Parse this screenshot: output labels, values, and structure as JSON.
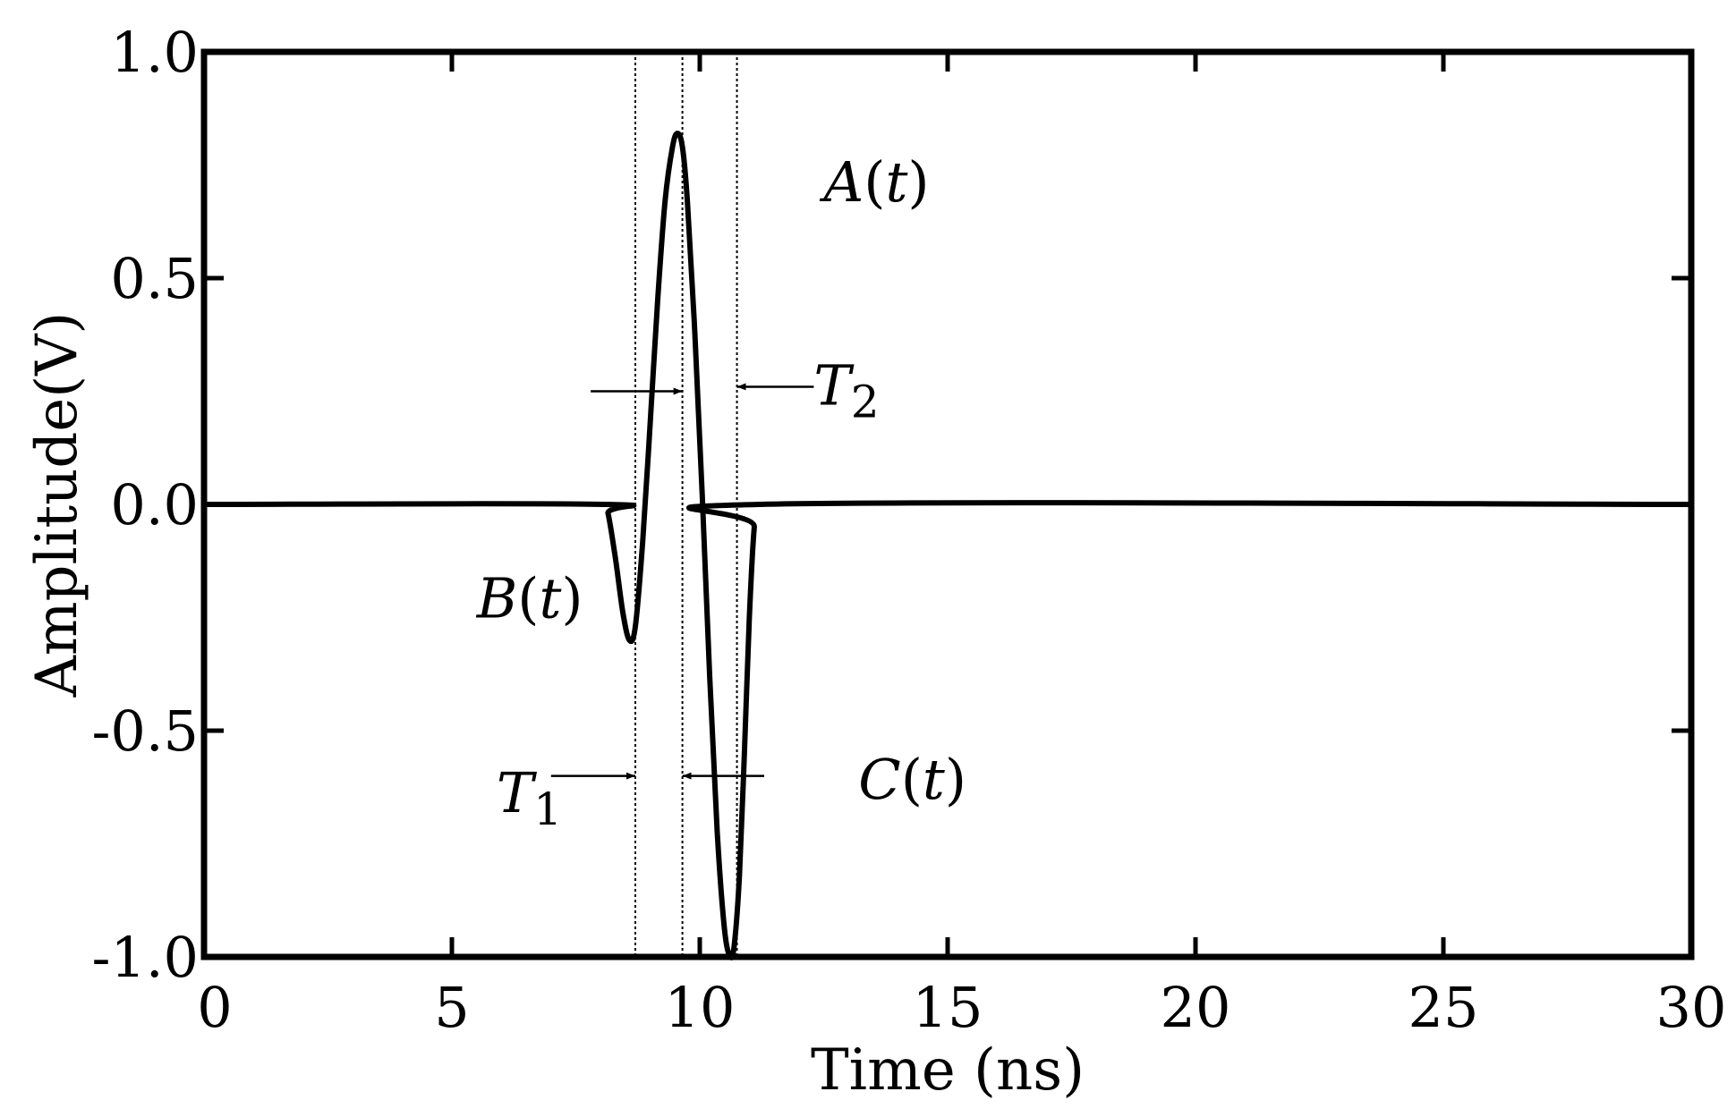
{
  "chart_data": {
    "type": "line",
    "title": "",
    "xlabel": "Time (ns)",
    "ylabel": "Amplitude(V)",
    "xlim": [
      0,
      30
    ],
    "ylim": [
      -1.0,
      1.0
    ],
    "x_ticks": [
      0,
      5,
      10,
      15,
      20,
      25,
      30
    ],
    "x_tick_labels": [
      "0",
      "5",
      "10",
      "15",
      "20",
      "25",
      "30"
    ],
    "y_ticks": [
      -1.0,
      -0.5,
      0.0,
      0.5,
      1.0
    ],
    "y_tick_labels": [
      "-1.0",
      "-0.5",
      "0.0",
      "0.5",
      "1.0"
    ],
    "grid": false,
    "legend": "none",
    "series": [
      {
        "x": [
          0,
          8.05,
          8.15,
          8.3,
          8.45,
          8.58,
          8.7,
          8.85,
          9.0,
          9.15,
          9.3,
          9.45,
          9.55,
          9.65,
          9.75,
          9.9,
          10.05,
          10.2,
          10.35,
          10.5,
          10.62,
          10.7,
          10.8,
          10.9,
          11.0,
          11.1,
          11.2,
          30
        ],
        "y": [
          0,
          0,
          -0.02,
          -0.12,
          -0.24,
          -0.3,
          -0.27,
          -0.08,
          0.18,
          0.45,
          0.67,
          0.79,
          0.82,
          0.79,
          0.67,
          0.38,
          0.02,
          -0.38,
          -0.72,
          -0.94,
          -1.0,
          -0.97,
          -0.82,
          -0.55,
          -0.25,
          -0.05,
          0,
          0
        ]
      }
    ],
    "reference_lines_x": [
      8.7,
      9.65,
      10.75
    ],
    "annotations": [
      {
        "label": "A",
        "var": "t",
        "x": 12.5,
        "y": 0.67
      },
      {
        "label": "B",
        "var": "t",
        "x": 5.5,
        "y": -0.25
      },
      {
        "label": "C",
        "var": "t",
        "x": 13.2,
        "y": -0.65
      },
      {
        "label": "T",
        "sub": "2",
        "x": 12.3,
        "y": 0.22
      },
      {
        "label": "T",
        "sub": "1",
        "x": 5.9,
        "y": -0.68
      }
    ],
    "arrows": [
      {
        "from": [
          7.8,
          0.25
        ],
        "to": [
          9.65,
          0.25
        ]
      },
      {
        "from": [
          12.3,
          0.26
        ],
        "to": [
          10.75,
          0.26
        ]
      },
      {
        "from": [
          7.0,
          -0.6
        ],
        "to": [
          8.7,
          -0.6
        ]
      },
      {
        "from": [
          11.3,
          -0.6
        ],
        "to": [
          9.65,
          -0.6
        ]
      }
    ]
  }
}
